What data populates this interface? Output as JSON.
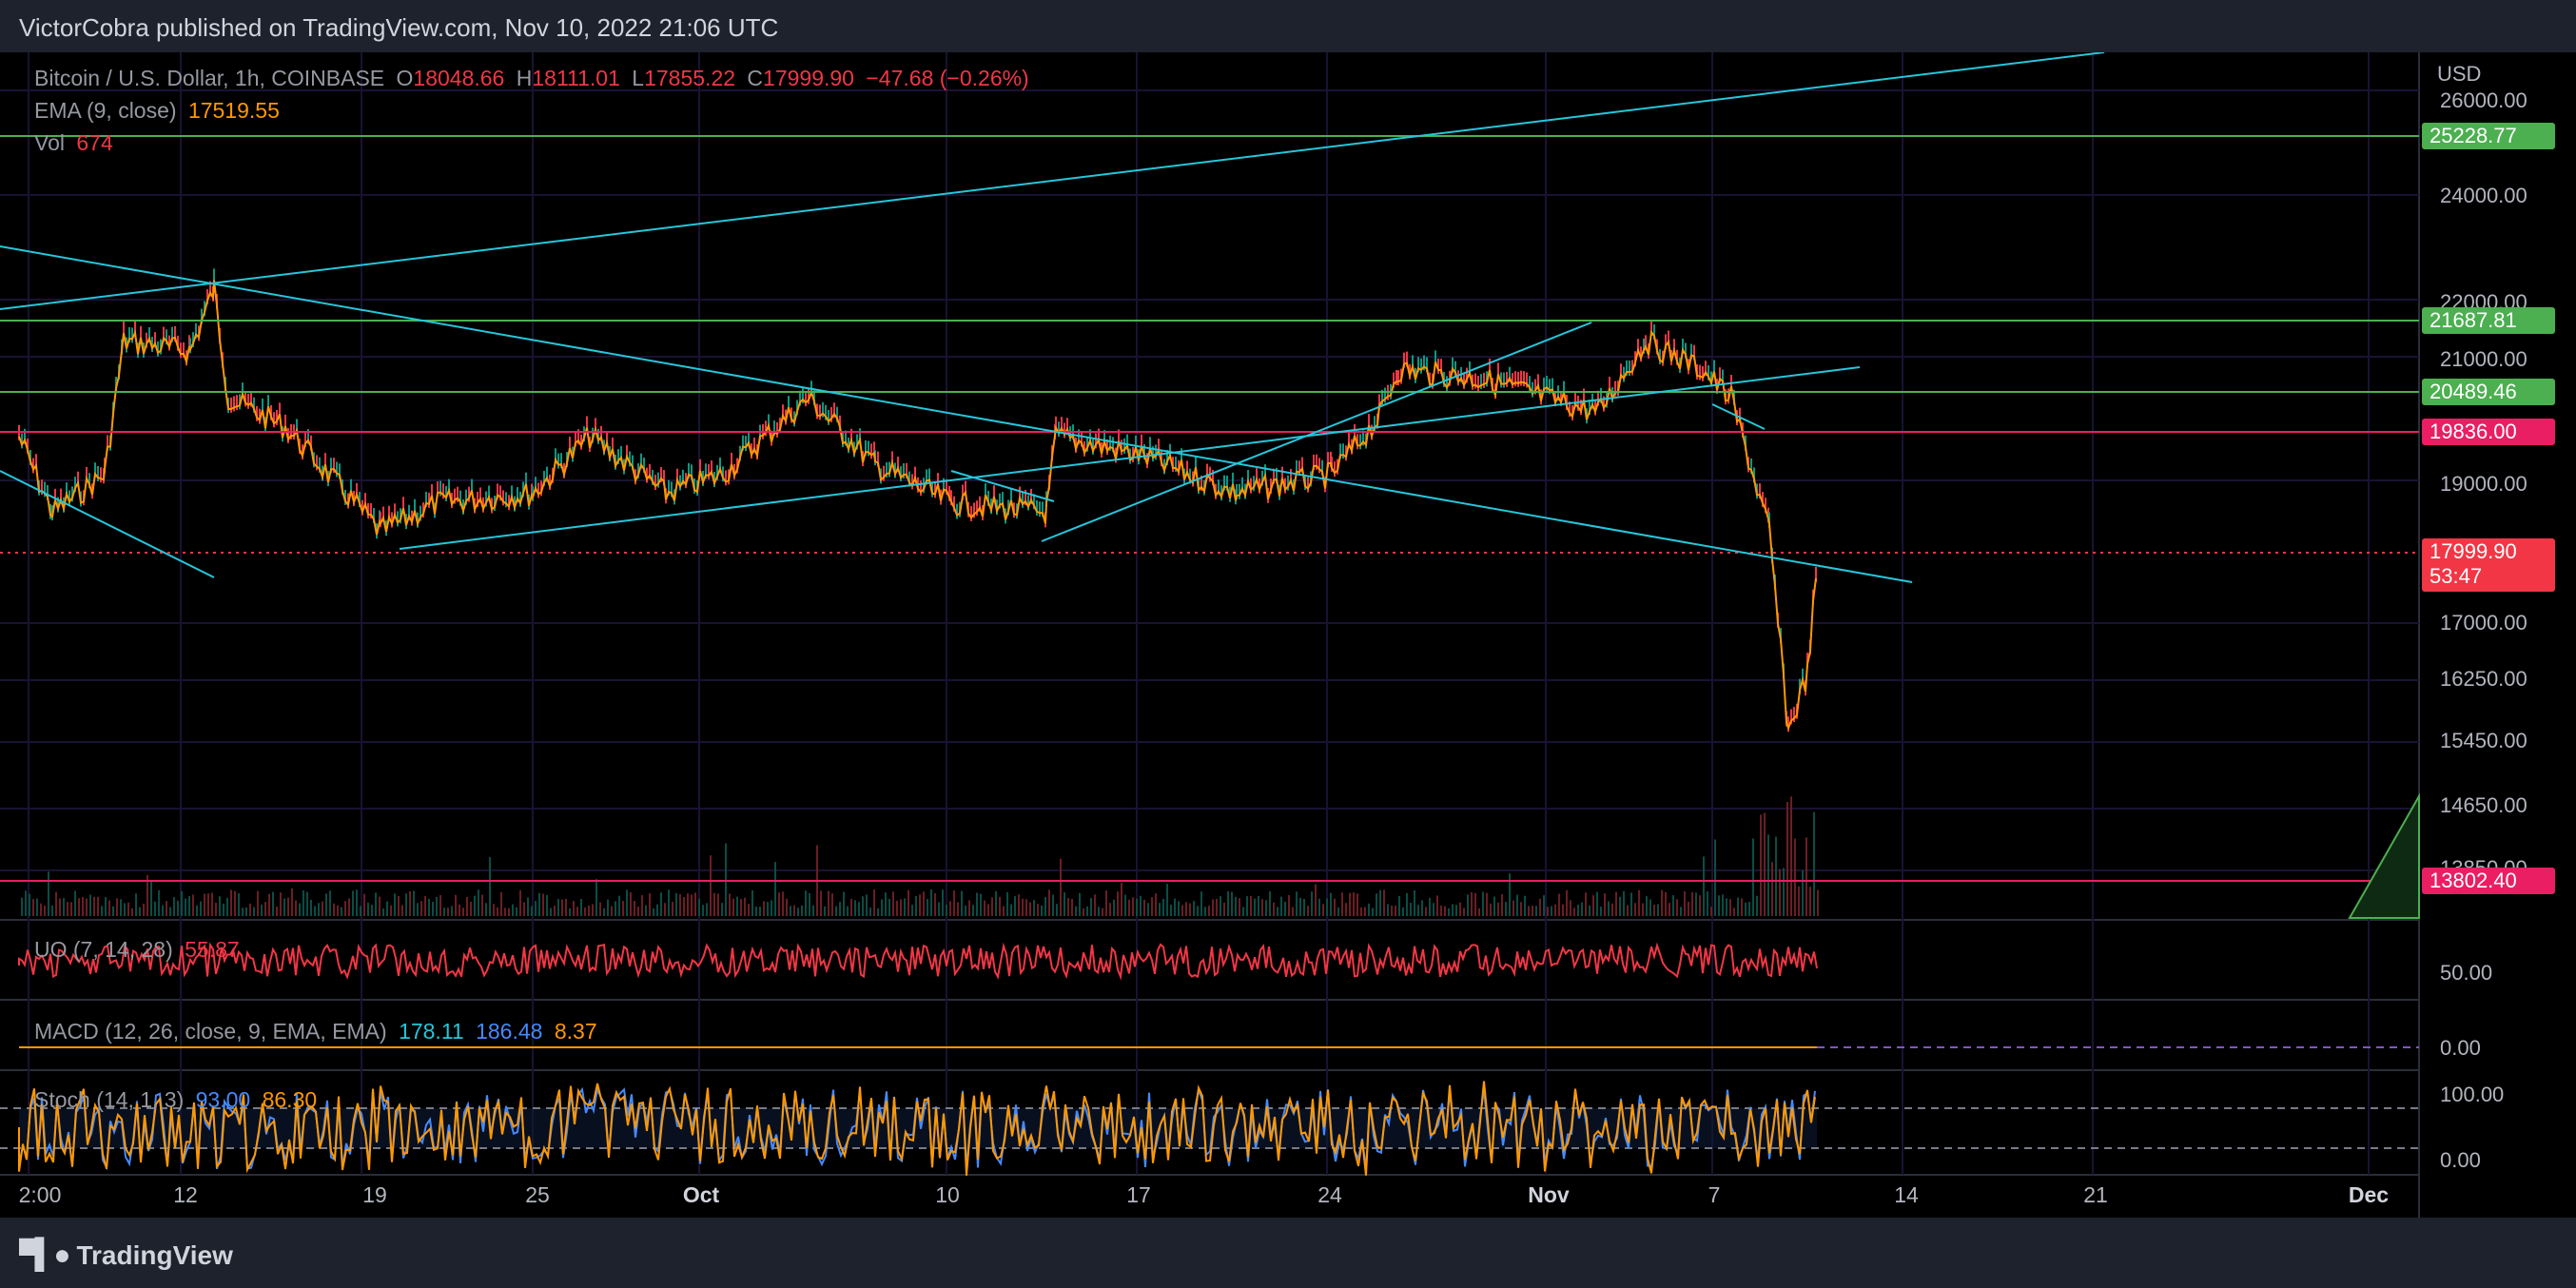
{
  "header": {
    "published": "VictorCobra published on TradingView.com, Nov 10, 2022 21:06 UTC"
  },
  "symbol": {
    "name": "Bitcoin / U.S. Dollar, 1h, COINBASE",
    "o_label": "O",
    "o": "18048.66",
    "h_label": "H",
    "h": "18111.01",
    "l_label": "L",
    "l": "17855.22",
    "c_label": "C",
    "c": "17999.90",
    "change": "−47.68 (−0.26%)"
  },
  "ema": {
    "label": "EMA (9, close)",
    "value": "17519.55"
  },
  "vol": {
    "label": "Vol",
    "value": "674"
  },
  "uo": {
    "label": "UO (7, 14, 28)",
    "value": "55.87"
  },
  "macd": {
    "label": "MACD (12, 26, close, 9, EMA, EMA)",
    "v1": "178.11",
    "v2": "186.48",
    "v3": "8.37"
  },
  "stoch": {
    "label": "Stoch (14, 1, 3)",
    "v1": "93.00",
    "v2": "86.30"
  },
  "price_axis": {
    "currency": "USD",
    "ticks": [
      "26000.00",
      "24000.00",
      "22000.00",
      "21000.00",
      "19000.00",
      "17000.00",
      "16250.00",
      "15450.00",
      "14650.00",
      "13850.00"
    ],
    "labels": [
      {
        "text": "25228.77",
        "color": "#4caf50"
      },
      {
        "text": "21687.81",
        "color": "#4caf50"
      },
      {
        "text": "20489.46",
        "color": "#4caf50"
      },
      {
        "text": "19836.00",
        "color": "#e91e63"
      },
      {
        "text": "17999.90",
        "color": "#f23645"
      },
      {
        "text": "13802.40",
        "color": "#e91e63"
      }
    ],
    "countdown": "53:47"
  },
  "uo_axis": {
    "ticks": [
      "50.00"
    ]
  },
  "macd_axis": {
    "ticks": [
      "0.00"
    ]
  },
  "stoch_axis": {
    "ticks": [
      "100.00",
      "0.00"
    ]
  },
  "time_axis": [
    "2:00",
    "12",
    "19",
    "25",
    "Oct",
    "10",
    "17",
    "24",
    "Nov",
    "7",
    "14",
    "21",
    "Dec"
  ],
  "footer": {
    "brand": "TradingView"
  },
  "colors": {
    "background": "#000000",
    "up": "#089981",
    "down": "#f23645",
    "ema": "#ff9800",
    "trendline": "#26c6da",
    "support": "#4caf50",
    "resistance": "#e91e63"
  }
}
